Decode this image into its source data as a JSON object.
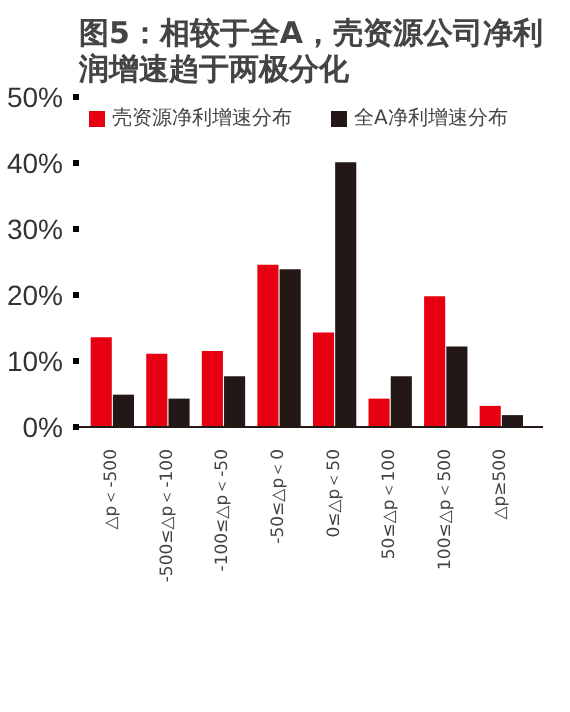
{
  "chart_data": {
    "type": "bar",
    "title": "图5：相较于全A，壳资源公司净利润增速趋于两极分化",
    "categories": [
      "△p＜-500",
      "-500≤△p＜-100",
      "-100≤△p＜-50",
      "-50≤△p＜0",
      "0≤△p＜50",
      "50≤△p＜100",
      "100≤△p＜500",
      "△p≥500"
    ],
    "series": [
      {
        "name": "壳资源净利增速分布",
        "color": "#e60012",
        "values": [
          13.6,
          11.1,
          11.5,
          24.6,
          14.3,
          4.3,
          19.8,
          3.2
        ]
      },
      {
        "name": "全A净利增速分布",
        "color": "#231815",
        "values": [
          4.9,
          4.3,
          7.7,
          23.9,
          40.1,
          7.7,
          12.2,
          1.8
        ]
      }
    ],
    "ylim": [
      0,
      50
    ],
    "yticks": [
      {
        "value": 0,
        "label": "0%"
      },
      {
        "value": 10,
        "label": "10%"
      },
      {
        "value": 20,
        "label": "20%"
      },
      {
        "value": 30,
        "label": "30%"
      },
      {
        "value": 40,
        "label": "40%"
      },
      {
        "value": 50,
        "label": "50%"
      }
    ],
    "grid": false,
    "legend": "top left"
  }
}
